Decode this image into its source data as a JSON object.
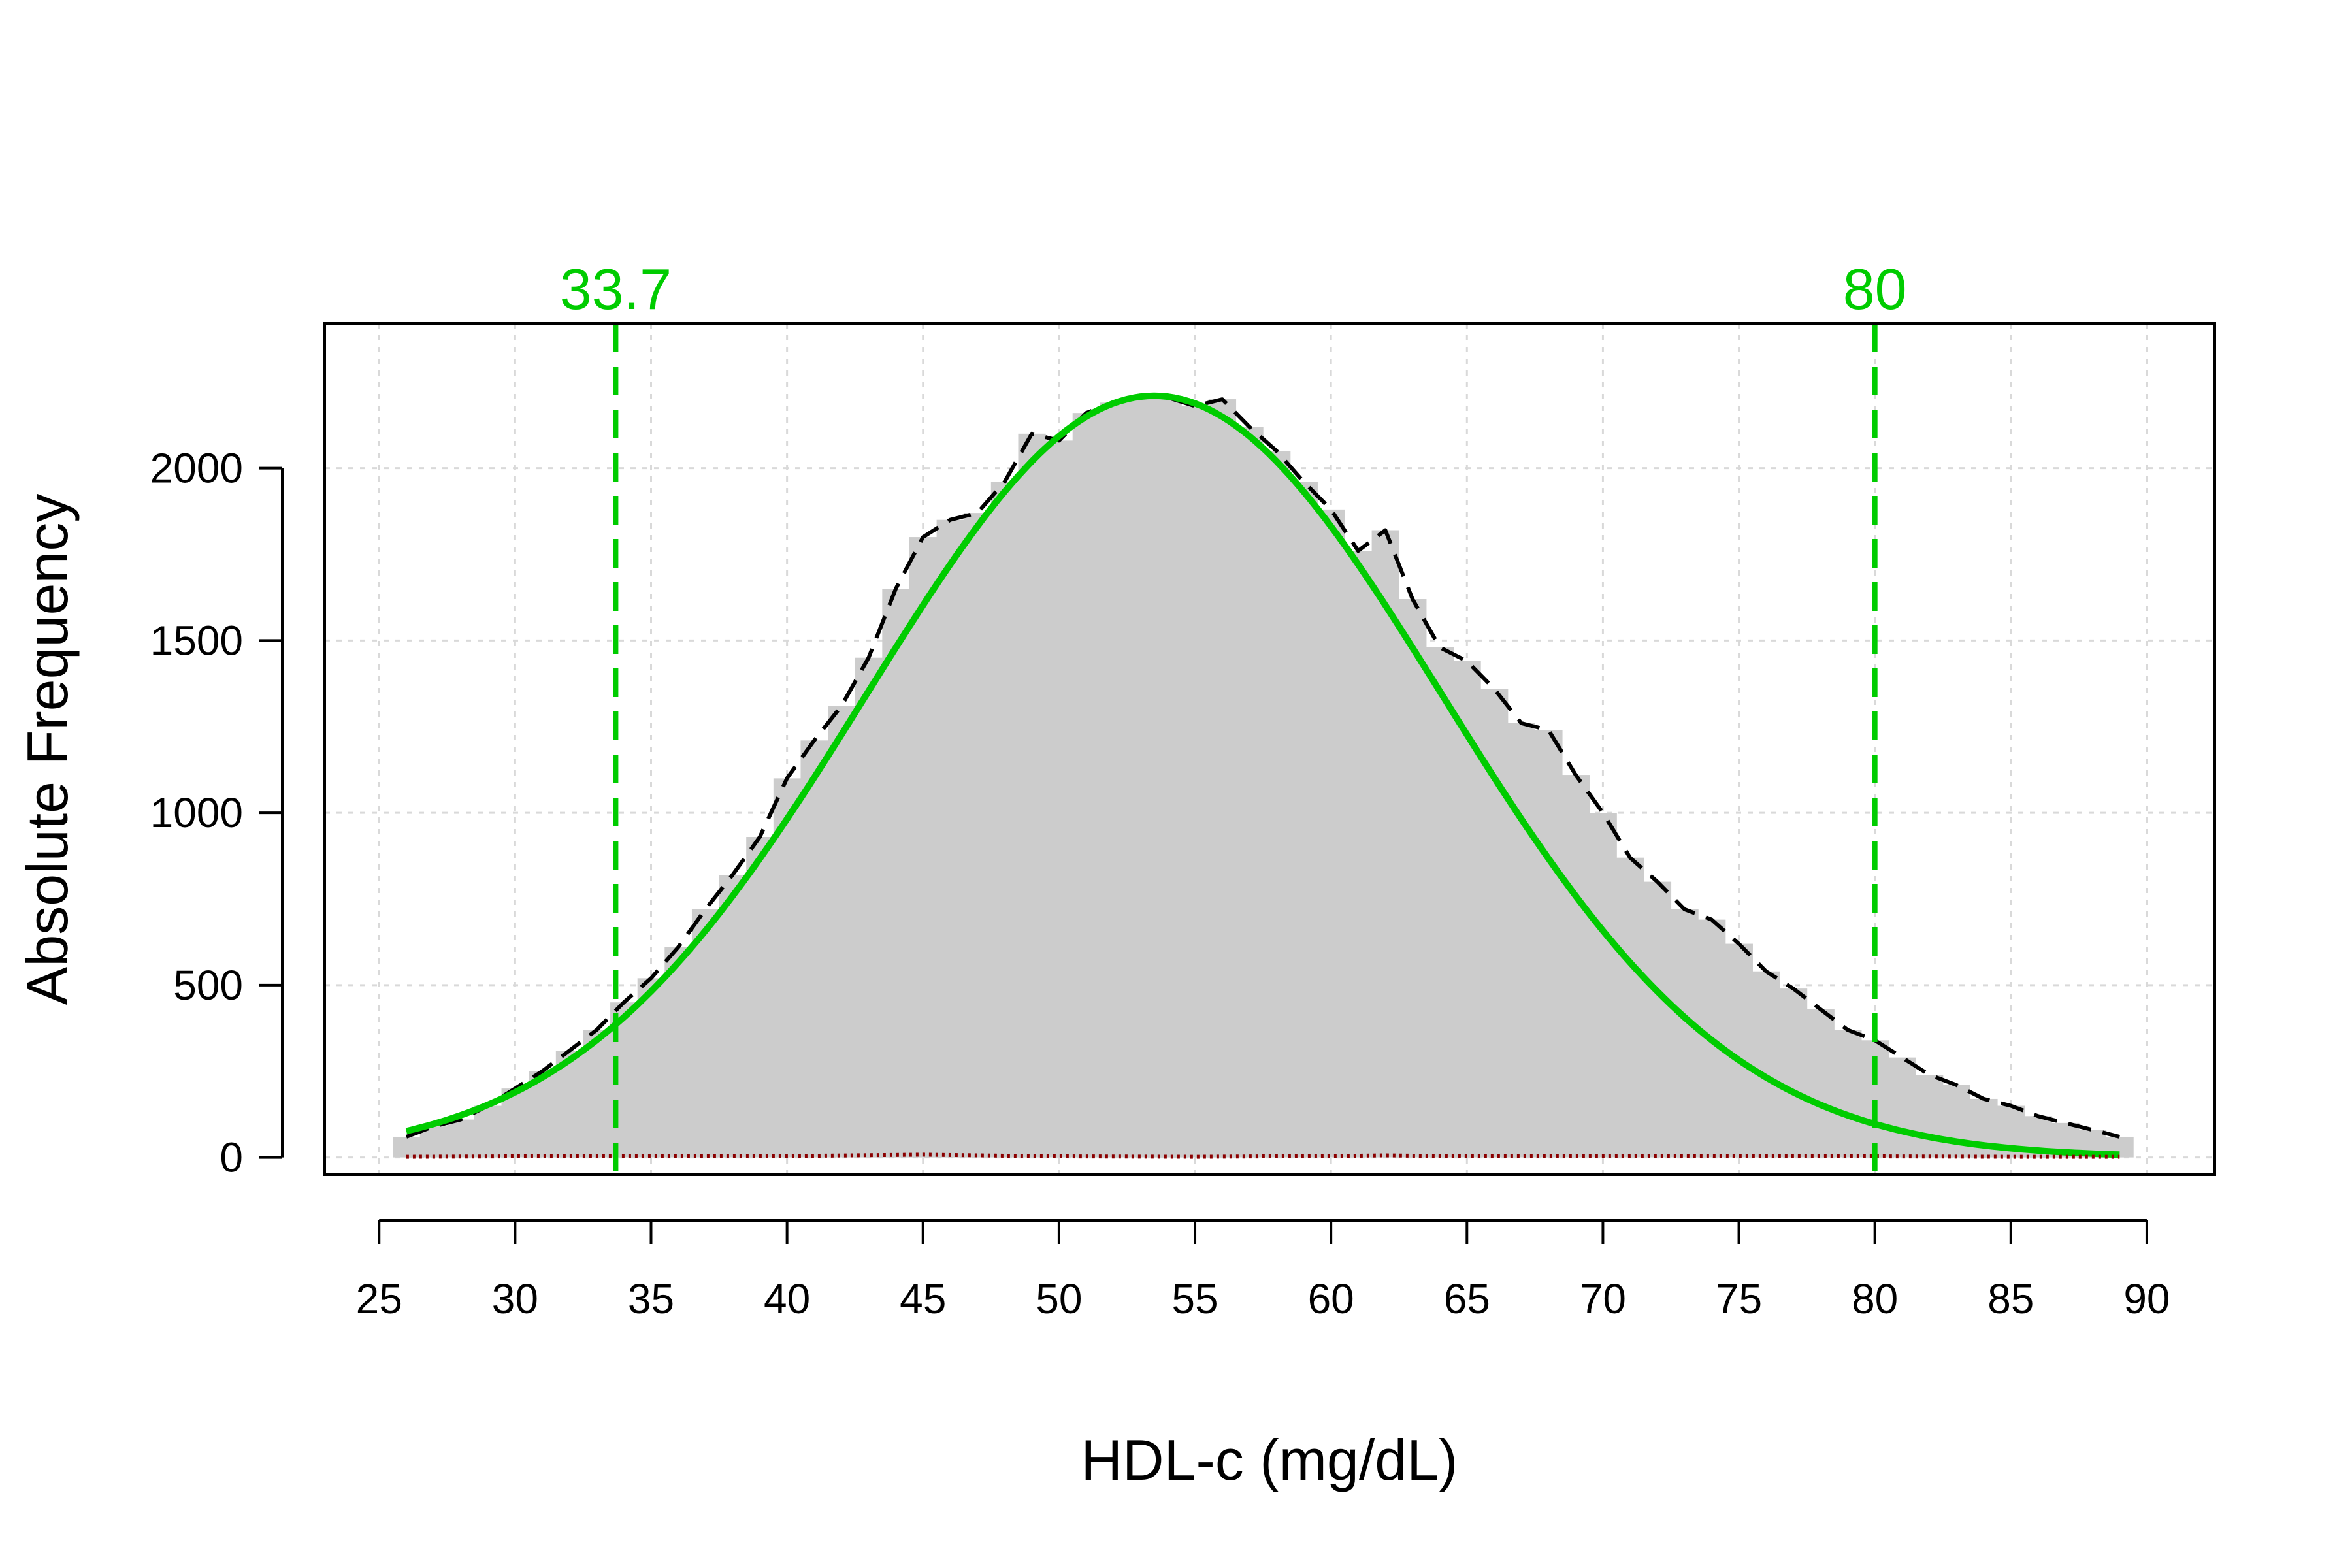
{
  "chart_data": {
    "type": "bar",
    "xlabel": "HDL-c (mg/dL)",
    "ylabel": "Absolute Frequency",
    "xlim": [
      23,
      92.5
    ],
    "ylim": [
      -50,
      2420
    ],
    "xticks": [
      "25",
      "30",
      "35",
      "40",
      "45",
      "50",
      "55",
      "60",
      "65",
      "70",
      "75",
      "80",
      "85",
      "90"
    ],
    "xtick_values": [
      25,
      30,
      35,
      40,
      45,
      50,
      55,
      60,
      65,
      70,
      75,
      80,
      85,
      90
    ],
    "yticks": [
      "0",
      "500",
      "1000",
      "1500",
      "2000"
    ],
    "ytick_values": [
      0,
      500,
      1000,
      1500,
      2000
    ],
    "grid": true,
    "histogram": {
      "bin_width": 1,
      "bins_x": [
        26,
        27,
        28,
        29,
        30,
        31,
        32,
        33,
        34,
        35,
        36,
        37,
        38,
        39,
        40,
        41,
        42,
        43,
        44,
        45,
        46,
        47,
        48,
        49,
        50,
        51,
        52,
        53,
        54,
        55,
        56,
        57,
        58,
        59,
        60,
        61,
        62,
        63,
        64,
        65,
        66,
        67,
        68,
        69,
        70,
        71,
        72,
        73,
        74,
        75,
        76,
        77,
        78,
        79,
        80,
        81,
        82,
        83,
        84,
        85,
        86,
        87,
        88,
        89
      ],
      "values": [
        60,
        90,
        110,
        150,
        200,
        250,
        310,
        370,
        450,
        520,
        610,
        720,
        820,
        930,
        1100,
        1210,
        1310,
        1450,
        1650,
        1800,
        1850,
        1870,
        1960,
        2100,
        2080,
        2160,
        2190,
        2210,
        2205,
        2180,
        2200,
        2120,
        2050,
        1960,
        1880,
        1760,
        1820,
        1620,
        1480,
        1440,
        1360,
        1260,
        1240,
        1110,
        1000,
        870,
        800,
        720,
        690,
        620,
        540,
        490,
        430,
        370,
        340,
        290,
        240,
        210,
        170,
        150,
        120,
        100,
        80,
        60
      ],
      "color": "#cccccc"
    },
    "series": [
      {
        "kind": "density-dashed",
        "color": "#000000",
        "x": [
          26,
          27,
          28,
          29,
          30,
          31,
          32,
          33,
          34,
          35,
          36,
          37,
          38,
          39,
          40,
          41,
          42,
          43,
          44,
          45,
          46,
          47,
          48,
          49,
          50,
          51,
          52,
          53,
          54,
          55,
          56,
          57,
          58,
          59,
          60,
          61,
          62,
          63,
          64,
          65,
          66,
          67,
          68,
          69,
          70,
          71,
          72,
          73,
          74,
          75,
          76,
          77,
          78,
          79,
          80,
          81,
          82,
          83,
          84,
          85,
          86,
          87,
          88,
          89
        ],
        "values": [
          60,
          90,
          110,
          150,
          200,
          250,
          310,
          370,
          450,
          520,
          610,
          720,
          820,
          930,
          1100,
          1210,
          1310,
          1450,
          1650,
          1800,
          1850,
          1870,
          1960,
          2100,
          2080,
          2160,
          2190,
          2210,
          2205,
          2180,
          2200,
          2120,
          2050,
          1960,
          1880,
          1760,
          1820,
          1620,
          1480,
          1440,
          1360,
          1260,
          1240,
          1110,
          1000,
          870,
          800,
          720,
          690,
          620,
          540,
          490,
          430,
          370,
          340,
          290,
          240,
          210,
          170,
          150,
          120,
          100,
          80,
          60
        ]
      },
      {
        "kind": "fitted-solid",
        "color": "#00cc00",
        "distribution": "normal",
        "mean": 53.5,
        "sd": 10.6,
        "peak": 2210,
        "x_range": [
          26,
          89
        ]
      },
      {
        "kind": "residual-dotted",
        "color": "#8b0000",
        "x": [
          26,
          30,
          35,
          40,
          45,
          50,
          55,
          60,
          62,
          65,
          70,
          72,
          75,
          80,
          85,
          89
        ],
        "values": [
          2,
          3,
          3,
          4,
          8,
          3,
          2,
          4,
          6,
          3,
          3,
          5,
          3,
          3,
          2,
          2
        ]
      }
    ],
    "reference_lines": [
      {
        "x": 33.7,
        "label": "33.7",
        "color": "#00cc00"
      },
      {
        "x": 80,
        "label": "80",
        "color": "#00cc00"
      }
    ]
  }
}
